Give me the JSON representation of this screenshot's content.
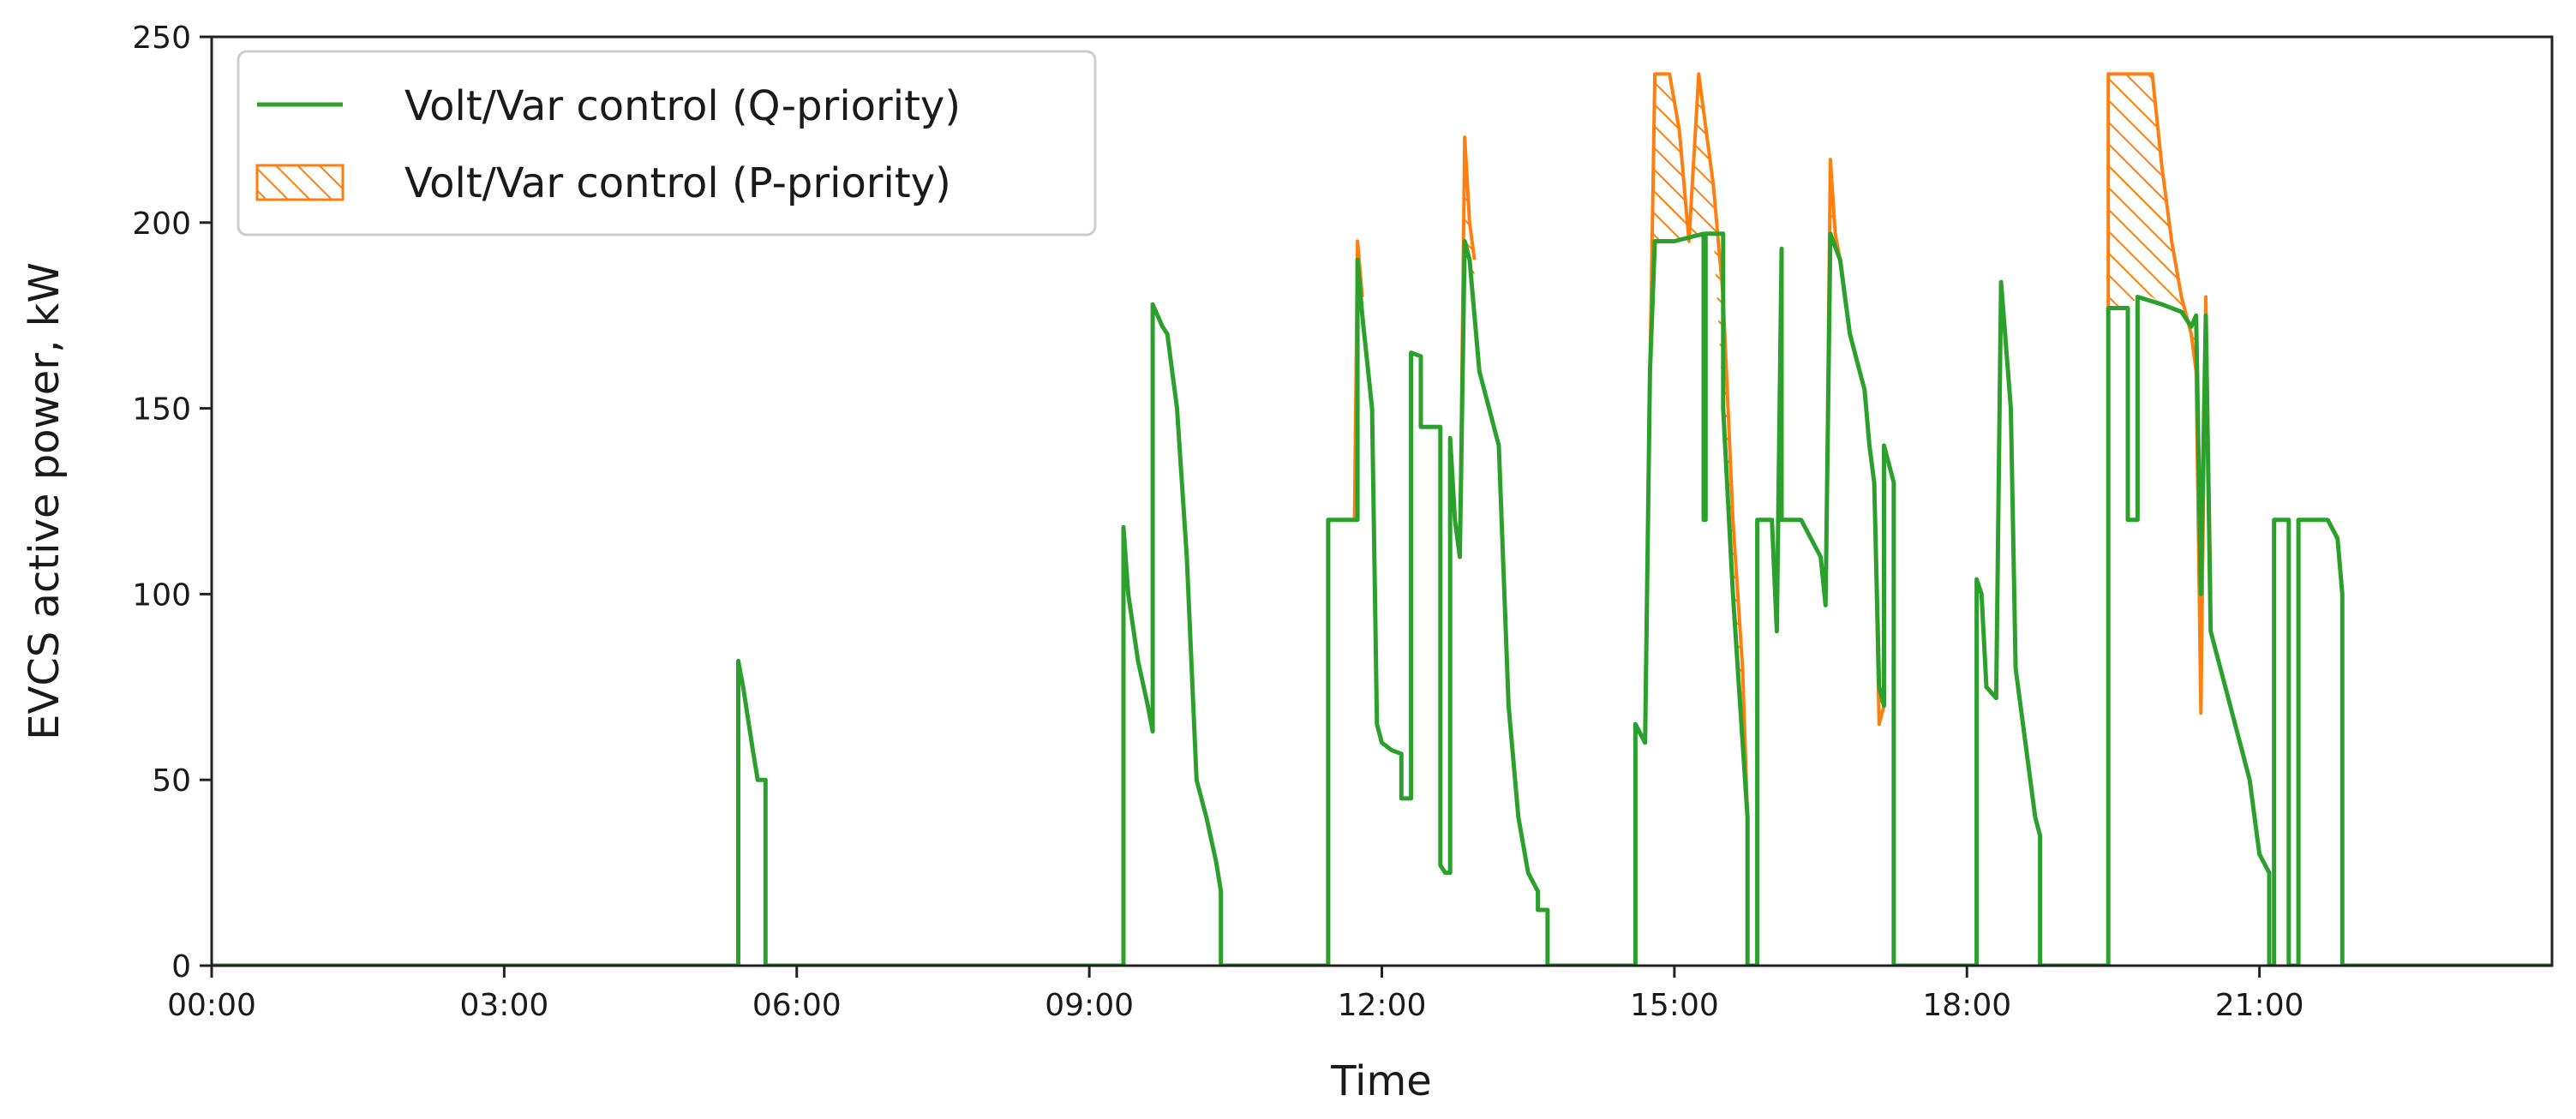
{
  "chart_data": {
    "type": "line",
    "xlabel": "Time",
    "ylabel": "EVCS active power, kW",
    "xlim": [
      0,
      24
    ],
    "ylim": [
      0,
      250
    ],
    "x_ticks": [
      {
        "value": 0,
        "label": "00:00"
      },
      {
        "value": 3,
        "label": "03:00"
      },
      {
        "value": 6,
        "label": "06:00"
      },
      {
        "value": 9,
        "label": "09:00"
      },
      {
        "value": 12,
        "label": "12:00"
      },
      {
        "value": 15,
        "label": "15:00"
      },
      {
        "value": 18,
        "label": "18:00"
      },
      {
        "value": 21,
        "label": "21:00"
      }
    ],
    "y_ticks": [
      {
        "value": 0,
        "label": "0"
      },
      {
        "value": 50,
        "label": "50"
      },
      {
        "value": 100,
        "label": "100"
      },
      {
        "value": 150,
        "label": "150"
      },
      {
        "value": 200,
        "label": "200"
      },
      {
        "value": 250,
        "label": "250"
      }
    ],
    "grid": false,
    "legend_position": "top-left",
    "series": [
      {
        "name": "Volt/Var control (Q-priority)",
        "kind": "line",
        "color": "#2ca02c",
        "points": [
          [
            0,
            0
          ],
          [
            5.4,
            0
          ],
          [
            5.4,
            82
          ],
          [
            5.45,
            75
          ],
          [
            5.55,
            58
          ],
          [
            5.6,
            50
          ],
          [
            5.68,
            50
          ],
          [
            5.68,
            0
          ],
          [
            9.35,
            0
          ],
          [
            9.35,
            118
          ],
          [
            9.4,
            100
          ],
          [
            9.5,
            82
          ],
          [
            9.6,
            70
          ],
          [
            9.65,
            63
          ],
          [
            9.65,
            178
          ],
          [
            9.75,
            172
          ],
          [
            9.8,
            170
          ],
          [
            9.9,
            150
          ],
          [
            10.0,
            110
          ],
          [
            10.1,
            50
          ],
          [
            10.2,
            40
          ],
          [
            10.3,
            28
          ],
          [
            10.35,
            20
          ],
          [
            10.35,
            0
          ],
          [
            11.45,
            0
          ],
          [
            11.45,
            120
          ],
          [
            11.75,
            120
          ],
          [
            11.75,
            190
          ],
          [
            11.8,
            175
          ],
          [
            11.9,
            150
          ],
          [
            11.95,
            65
          ],
          [
            12.0,
            60
          ],
          [
            12.1,
            58
          ],
          [
            12.2,
            57
          ],
          [
            12.2,
            45
          ],
          [
            12.3,
            45
          ],
          [
            12.3,
            165
          ],
          [
            12.4,
            164
          ],
          [
            12.4,
            145
          ],
          [
            12.6,
            145
          ],
          [
            12.6,
            27
          ],
          [
            12.65,
            25
          ],
          [
            12.7,
            25
          ],
          [
            12.7,
            142
          ],
          [
            12.75,
            120
          ],
          [
            12.8,
            110
          ],
          [
            12.85,
            195
          ],
          [
            12.9,
            190
          ],
          [
            13.0,
            160
          ],
          [
            13.2,
            140
          ],
          [
            13.3,
            70
          ],
          [
            13.4,
            40
          ],
          [
            13.5,
            25
          ],
          [
            13.6,
            20
          ],
          [
            13.6,
            15
          ],
          [
            13.7,
            15
          ],
          [
            13.7,
            0
          ],
          [
            14.6,
            0
          ],
          [
            14.6,
            65
          ],
          [
            14.7,
            60
          ],
          [
            14.75,
            160
          ],
          [
            14.8,
            195
          ],
          [
            15.0,
            195
          ],
          [
            15.3,
            197
          ],
          [
            15.3,
            120
          ],
          [
            15.32,
            120
          ],
          [
            15.32,
            197
          ],
          [
            15.5,
            197
          ],
          [
            15.5,
            150
          ],
          [
            15.6,
            100
          ],
          [
            15.7,
            60
          ],
          [
            15.75,
            40
          ],
          [
            15.75,
            0
          ],
          [
            15.85,
            0
          ],
          [
            15.85,
            120
          ],
          [
            16.0,
            120
          ],
          [
            16.05,
            90
          ],
          [
            16.1,
            193
          ],
          [
            16.1,
            120
          ],
          [
            16.3,
            120
          ],
          [
            16.5,
            110
          ],
          [
            16.55,
            97
          ],
          [
            16.6,
            197
          ],
          [
            16.7,
            190
          ],
          [
            16.8,
            170
          ],
          [
            16.95,
            155
          ],
          [
            17.0,
            140
          ],
          [
            17.05,
            130
          ],
          [
            17.1,
            75
          ],
          [
            17.15,
            70
          ],
          [
            17.15,
            140
          ],
          [
            17.25,
            130
          ],
          [
            17.25,
            0
          ],
          [
            18.1,
            0
          ],
          [
            18.1,
            104
          ],
          [
            18.15,
            100
          ],
          [
            18.2,
            75
          ],
          [
            18.3,
            72
          ],
          [
            18.35,
            184
          ],
          [
            18.45,
            150
          ],
          [
            18.5,
            80
          ],
          [
            18.6,
            60
          ],
          [
            18.7,
            40
          ],
          [
            18.75,
            35
          ],
          [
            18.75,
            0
          ],
          [
            19.45,
            0
          ],
          [
            19.45,
            177
          ],
          [
            19.65,
            177
          ],
          [
            19.65,
            120
          ],
          [
            19.75,
            120
          ],
          [
            19.75,
            180
          ],
          [
            20.0,
            178
          ],
          [
            20.2,
            176
          ],
          [
            20.3,
            172
          ],
          [
            20.35,
            175
          ],
          [
            20.4,
            100
          ],
          [
            20.45,
            175
          ],
          [
            20.5,
            90
          ],
          [
            20.7,
            70
          ],
          [
            20.9,
            50
          ],
          [
            21.0,
            30
          ],
          [
            21.1,
            25
          ],
          [
            21.1,
            0
          ],
          [
            21.15,
            0
          ],
          [
            21.15,
            120
          ],
          [
            21.3,
            120
          ],
          [
            21.3,
            0
          ],
          [
            21.4,
            0
          ],
          [
            21.4,
            120
          ],
          [
            21.7,
            120
          ],
          [
            21.8,
            115
          ],
          [
            21.85,
            100
          ],
          [
            21.85,
            0
          ],
          [
            24,
            0
          ]
        ]
      },
      {
        "name": "Volt/Var control (P-priority)",
        "kind": "hatched-area",
        "color": "#ff7f0e",
        "regions": [
          {
            "upper": [
              [
                11.72,
                120
              ],
              [
                11.75,
                195
              ],
              [
                11.8,
                180
              ]
            ],
            "lower": [
              [
                11.72,
                120
              ],
              [
                11.75,
                190
              ],
              [
                11.8,
                175
              ]
            ]
          },
          {
            "upper": [
              [
                12.8,
                110
              ],
              [
                12.85,
                223
              ],
              [
                12.9,
                200
              ],
              [
                12.95,
                190
              ]
            ],
            "lower": [
              [
                12.8,
                110
              ],
              [
                12.85,
                195
              ],
              [
                12.9,
                190
              ],
              [
                12.95,
                180
              ]
            ]
          },
          {
            "upper": [
              [
                14.75,
                160
              ],
              [
                14.8,
                240
              ],
              [
                14.95,
                240
              ],
              [
                15.05,
                225
              ],
              [
                15.15,
                195
              ],
              [
                15.25,
                240
              ],
              [
                15.3,
                230
              ],
              [
                15.4,
                210
              ],
              [
                15.5,
                180
              ],
              [
                15.6,
                120
              ],
              [
                15.7,
                80
              ],
              [
                15.75,
                40
              ]
            ],
            "lower": [
              [
                14.75,
                160
              ],
              [
                14.8,
                195
              ],
              [
                14.95,
                195
              ],
              [
                15.05,
                195
              ],
              [
                15.15,
                196
              ],
              [
                15.25,
                197
              ],
              [
                15.3,
                197
              ],
              [
                15.4,
                197
              ],
              [
                15.5,
                150
              ],
              [
                15.6,
                100
              ],
              [
                15.7,
                60
              ],
              [
                15.75,
                40
              ]
            ]
          },
          {
            "upper": [
              [
                16.55,
                97
              ],
              [
                16.6,
                217
              ],
              [
                16.65,
                197
              ],
              [
                16.7,
                190
              ]
            ],
            "lower": [
              [
                16.55,
                97
              ],
              [
                16.6,
                197
              ],
              [
                16.65,
                195
              ],
              [
                16.7,
                190
              ]
            ]
          },
          {
            "upper": [
              [
                17.05,
                130
              ],
              [
                17.1,
                65
              ],
              [
                17.15,
                70
              ]
            ],
            "lower": [
              [
                17.05,
                130
              ],
              [
                17.1,
                75
              ],
              [
                17.15,
                70
              ]
            ]
          },
          {
            "upper": [
              [
                19.45,
                177
              ],
              [
                19.45,
                240
              ],
              [
                19.65,
                240
              ],
              [
                19.75,
                240
              ],
              [
                19.9,
                240
              ],
              [
                20.0,
                215
              ],
              [
                20.1,
                195
              ],
              [
                20.2,
                180
              ],
              [
                20.3,
                170
              ],
              [
                20.35,
                160
              ],
              [
                20.4,
                68
              ],
              [
                20.45,
                180
              ],
              [
                20.5,
                100
              ]
            ],
            "lower": [
              [
                19.45,
                177
              ],
              [
                19.45,
                177
              ],
              [
                19.65,
                177
              ],
              [
                19.75,
                180
              ],
              [
                19.9,
                180
              ],
              [
                20.0,
                178
              ],
              [
                20.1,
                177
              ],
              [
                20.2,
                176
              ],
              [
                20.3,
                172
              ],
              [
                20.35,
                175
              ],
              [
                20.4,
                100
              ],
              [
                20.45,
                175
              ],
              [
                20.5,
                90
              ]
            ]
          }
        ]
      }
    ],
    "legend": [
      {
        "label": "Volt/Var control (Q-priority)",
        "kind": "line",
        "color": "#2ca02c"
      },
      {
        "label": "Volt/Var control (P-priority)",
        "kind": "hatched-area",
        "color": "#ff7f0e"
      }
    ]
  }
}
